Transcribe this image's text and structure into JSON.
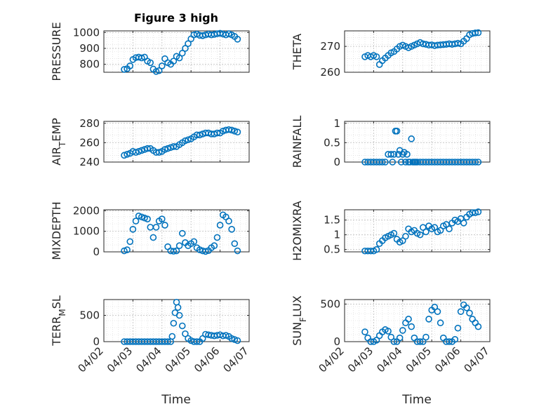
{
  "chart_data": {
    "type": "scatter",
    "title": "Figure 3 high",
    "marker_color": "#0072BD",
    "x_ticks": [
      "04/02",
      "04/03",
      "04/04",
      "04/05",
      "04/06",
      "04/07"
    ],
    "xlabel": "Time",
    "subplots": [
      {
        "ylabel": [
          "PRESSURE"
        ],
        "ylim": [
          750,
          1010
        ],
        "yticks": [
          "800",
          "900",
          "1000"
        ],
        "ytick_values": [
          800,
          900,
          1000
        ],
        "x": [
          0.7,
          0.8,
          0.9,
          1.0,
          1.1,
          1.2,
          1.3,
          1.4,
          1.5,
          1.6,
          1.7,
          1.8,
          1.9,
          2.0,
          2.1,
          2.2,
          2.3,
          2.4,
          2.5,
          2.6,
          2.7,
          2.8,
          2.9,
          3.0,
          3.1,
          3.2,
          3.3,
          3.4,
          3.5,
          3.6,
          3.7,
          3.8,
          3.9,
          4.0,
          4.1,
          4.2,
          4.3,
          4.4,
          4.5,
          4.6
        ],
        "values": [
          768,
          772,
          790,
          830,
          842,
          845,
          840,
          845,
          820,
          810,
          770,
          755,
          760,
          790,
          835,
          810,
          800,
          820,
          850,
          840,
          870,
          900,
          930,
          960,
          985,
          990,
          982,
          980,
          985,
          990,
          985,
          988,
          992,
          995,
          990,
          985,
          992,
          985,
          975,
          958
        ]
      },
      {
        "ylabel": [
          "THETA"
        ],
        "ylim": [
          260,
          276
        ],
        "yticks": [
          "260",
          "270"
        ],
        "ytick_values": [
          260,
          270
        ],
        "x": [
          0.7,
          0.8,
          0.9,
          1.0,
          1.1,
          1.2,
          1.3,
          1.4,
          1.5,
          1.6,
          1.7,
          1.8,
          1.9,
          2.0,
          2.1,
          2.2,
          2.3,
          2.4,
          2.5,
          2.6,
          2.7,
          2.8,
          2.9,
          3.0,
          3.1,
          3.2,
          3.3,
          3.4,
          3.5,
          3.6,
          3.7,
          3.8,
          3.9,
          4.0,
          4.1,
          4.2,
          4.3,
          4.4,
          4.5,
          4.6
        ],
        "values": [
          266,
          266.5,
          266,
          266.5,
          266,
          263,
          264.5,
          265.5,
          266.5,
          267.5,
          268,
          269,
          270,
          270.5,
          270,
          269.5,
          270,
          270.5,
          271,
          271.5,
          271,
          270.8,
          270.5,
          270.6,
          270.3,
          270.5,
          270.6,
          270.7,
          270.8,
          271,
          270.8,
          271,
          271.2,
          271,
          272,
          273,
          274.5,
          275,
          275.2,
          275.3
        ]
      },
      {
        "ylabel": [
          "AIR",
          "T",
          "EMP"
        ],
        "ylim": [
          240,
          282
        ],
        "yticks": [
          "240",
          "260",
          "280"
        ],
        "ytick_values": [
          240,
          260,
          280
        ],
        "x": [
          0.7,
          0.8,
          0.9,
          1.0,
          1.1,
          1.2,
          1.3,
          1.4,
          1.5,
          1.6,
          1.7,
          1.8,
          1.9,
          2.0,
          2.1,
          2.2,
          2.3,
          2.4,
          2.5,
          2.6,
          2.7,
          2.8,
          2.9,
          3.0,
          3.1,
          3.2,
          3.3,
          3.4,
          3.5,
          3.6,
          3.7,
          3.8,
          3.9,
          4.0,
          4.1,
          4.2,
          4.3,
          4.4,
          4.5,
          4.6
        ],
        "values": [
          247,
          248,
          249,
          251,
          250,
          251,
          252,
          253,
          254,
          254,
          252,
          250,
          250,
          251,
          253,
          254,
          255,
          256,
          256,
          258,
          260,
          262,
          263,
          264,
          266,
          268,
          268,
          269,
          270,
          270,
          269,
          269,
          270,
          270,
          272,
          273,
          273.5,
          273,
          272,
          271
        ]
      },
      {
        "ylabel": [
          "RAINFALL"
        ],
        "ylim": [
          0,
          1.05
        ],
        "yticks": [
          "0",
          "0.5",
          "1"
        ],
        "ytick_values": [
          0,
          0.5,
          1
        ],
        "x": [
          0.7,
          0.8,
          0.9,
          1.0,
          1.1,
          1.2,
          1.3,
          1.4,
          1.5,
          1.6,
          1.65,
          1.7,
          1.75,
          1.8,
          1.85,
          1.9,
          1.95,
          2.0,
          2.05,
          2.1,
          2.15,
          2.2,
          2.25,
          2.3,
          2.35,
          2.4,
          2.45,
          2.5,
          2.6,
          2.7,
          2.8,
          2.9,
          3.0,
          3.1,
          3.2,
          3.3,
          3.4,
          3.5,
          3.6,
          3.7,
          3.8,
          3.9,
          4.0,
          4.1,
          4.2,
          4.3,
          4.4,
          4.5,
          4.6
        ],
        "values": [
          0,
          0,
          0,
          0,
          0,
          0,
          0,
          0,
          0.2,
          0.2,
          0,
          0.2,
          0.8,
          0.8,
          0.2,
          0.3,
          0,
          0.2,
          0.25,
          0,
          0.2,
          0,
          0,
          0.6,
          0,
          0,
          0,
          0,
          0,
          0,
          0,
          0,
          0,
          0,
          0,
          0,
          0,
          0,
          0,
          0,
          0,
          0,
          0,
          0,
          0,
          0,
          0,
          0,
          0
        ]
      },
      {
        "ylabel": [
          "MIXDEPTH"
        ],
        "ylim": [
          0,
          2050
        ],
        "yticks": [
          "0",
          "1000",
          "2000"
        ],
        "ytick_values": [
          0,
          1000,
          2000
        ],
        "x": [
          0.7,
          0.8,
          0.9,
          1.0,
          1.1,
          1.2,
          1.3,
          1.4,
          1.5,
          1.6,
          1.7,
          1.8,
          1.9,
          2.0,
          2.1,
          2.2,
          2.3,
          2.4,
          2.5,
          2.6,
          2.7,
          2.8,
          2.9,
          3.0,
          3.1,
          3.2,
          3.3,
          3.4,
          3.5,
          3.6,
          3.7,
          3.8,
          3.9,
          4.0,
          4.1,
          4.2,
          4.3,
          4.4,
          4.5,
          4.6
        ],
        "values": [
          50,
          100,
          500,
          1100,
          1500,
          1750,
          1700,
          1650,
          1600,
          1200,
          700,
          1200,
          1500,
          1600,
          1300,
          250,
          50,
          30,
          50,
          300,
          900,
          450,
          300,
          400,
          500,
          200,
          100,
          50,
          20,
          60,
          200,
          300,
          700,
          1300,
          1800,
          1700,
          1500,
          1100,
          400,
          50
        ]
      },
      {
        "ylabel": [
          "H2OMIXRA"
        ],
        "ylim": [
          0.42,
          1.85
        ],
        "yticks": [
          "0.5",
          "1",
          "1.5"
        ],
        "ytick_values": [
          0.5,
          1,
          1.5
        ],
        "x": [
          0.7,
          0.8,
          0.9,
          1.0,
          1.1,
          1.2,
          1.3,
          1.4,
          1.5,
          1.6,
          1.7,
          1.8,
          1.9,
          2.0,
          2.1,
          2.2,
          2.3,
          2.4,
          2.5,
          2.6,
          2.7,
          2.8,
          2.9,
          3.0,
          3.1,
          3.2,
          3.3,
          3.4,
          3.5,
          3.6,
          3.7,
          3.8,
          3.9,
          4.0,
          4.1,
          4.2,
          4.3,
          4.4,
          4.5,
          4.6
        ],
        "values": [
          0.45,
          0.45,
          0.45,
          0.45,
          0.5,
          0.7,
          0.8,
          0.9,
          0.95,
          1.0,
          1.05,
          0.85,
          0.75,
          0.8,
          0.95,
          1.2,
          1.1,
          1.15,
          1.05,
          1.0,
          1.25,
          1.1,
          1.3,
          1.2,
          1.25,
          1.1,
          1.15,
          1.3,
          1.35,
          1.2,
          1.4,
          1.5,
          1.45,
          1.55,
          1.4,
          1.6,
          1.7,
          1.75,
          1.75,
          1.78
        ]
      },
      {
        "ylabel": [
          "TERR",
          "M",
          "SL"
        ],
        "ylim": [
          0,
          800
        ],
        "yticks": [
          "0",
          "500"
        ],
        "ytick_values": [
          0,
          500
        ],
        "x": [
          0.7,
          0.8,
          0.9,
          1.0,
          1.1,
          1.2,
          1.3,
          1.4,
          1.5,
          1.6,
          1.7,
          1.8,
          1.9,
          2.0,
          2.1,
          2.2,
          2.3,
          2.35,
          2.4,
          2.45,
          2.5,
          2.55,
          2.6,
          2.7,
          2.8,
          2.9,
          3.0,
          3.1,
          3.2,
          3.3,
          3.4,
          3.5,
          3.6,
          3.7,
          3.8,
          3.9,
          4.0,
          4.1,
          4.2,
          4.3,
          4.4,
          4.5,
          4.6
        ],
        "values": [
          0,
          0,
          0,
          0,
          0,
          0,
          0,
          0,
          0,
          0,
          0,
          0,
          0,
          0,
          0,
          0,
          0,
          100,
          350,
          550,
          750,
          650,
          500,
          300,
          150,
          60,
          20,
          0,
          0,
          0,
          60,
          140,
          130,
          120,
          110,
          120,
          130,
          110,
          120,
          100,
          60,
          40,
          20
        ]
      },
      {
        "ylabel": [
          "SUN",
          "F",
          "LUX"
        ],
        "ylim": [
          0,
          560
        ],
        "yticks": [
          "0",
          "500"
        ],
        "ytick_values": [
          0,
          500
        ],
        "x": [
          0.7,
          0.8,
          0.9,
          1.0,
          1.1,
          1.2,
          1.3,
          1.4,
          1.5,
          1.6,
          1.7,
          1.8,
          1.9,
          2.0,
          2.1,
          2.2,
          2.3,
          2.4,
          2.5,
          2.6,
          2.7,
          2.8,
          2.9,
          3.0,
          3.1,
          3.2,
          3.3,
          3.4,
          3.5,
          3.6,
          3.7,
          3.8,
          3.9,
          4.0,
          4.1,
          4.2,
          4.3,
          4.4,
          4.5,
          4.6
        ],
        "values": [
          130,
          50,
          0,
          0,
          20,
          80,
          130,
          160,
          140,
          60,
          0,
          0,
          50,
          150,
          250,
          300,
          200,
          50,
          0,
          0,
          0,
          60,
          300,
          420,
          460,
          400,
          250,
          50,
          0,
          0,
          0,
          30,
          180,
          400,
          490,
          450,
          380,
          300,
          250,
          200
        ]
      }
    ]
  }
}
